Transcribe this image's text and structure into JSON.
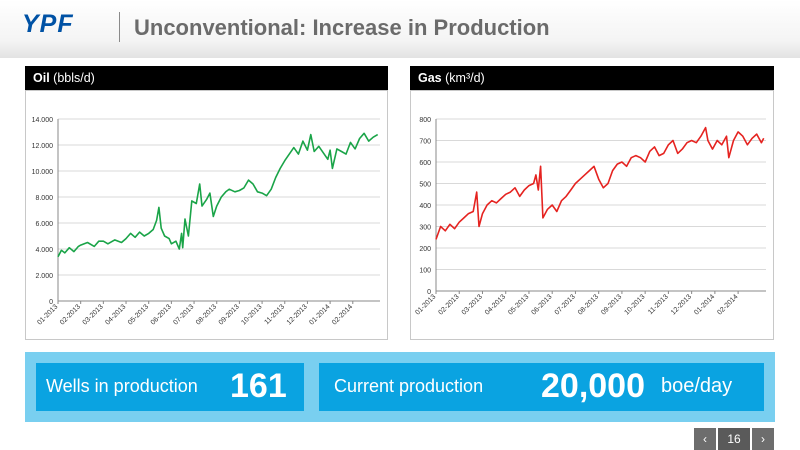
{
  "header": {
    "logo": "YPF",
    "title": "Unconventional: Increase in Production"
  },
  "colors": {
    "oil_line": "#1aa448",
    "gas_line": "#e52320",
    "kpi_box": "#0aa3e1",
    "kpi_strip": "#79cff0",
    "logo": "#0052a5"
  },
  "chart_data": [
    {
      "type": "line",
      "title": "Oil",
      "title_unit": "(bbls/d)",
      "ylim": [
        0,
        14000
      ],
      "yticks": [
        0,
        2000,
        4000,
        6000,
        8000,
        10000,
        12000,
        14000
      ],
      "ytick_labels": [
        "0",
        "2.000",
        "4.000",
        "6.000",
        "8.000",
        "10.000",
        "12.000",
        "14.000"
      ],
      "xtick_labels": [
        "01-2013",
        "02-2013",
        "03-2013",
        "04-2013",
        "05-2013",
        "06-2013",
        "07-2013",
        "08-2013",
        "09-2013",
        "10-2013",
        "11-2013",
        "12-2013",
        "01-2014",
        "02-2014"
      ],
      "x_range": [
        0,
        14.2
      ],
      "grid": true,
      "series": [
        {
          "color": "#1aa448",
          "points": [
            [
              0,
              3400
            ],
            [
              0.15,
              3900
            ],
            [
              0.3,
              3700
            ],
            [
              0.5,
              4100
            ],
            [
              0.7,
              3800
            ],
            [
              0.9,
              4200
            ],
            [
              1.0,
              4300
            ],
            [
              1.3,
              4500
            ],
            [
              1.6,
              4200
            ],
            [
              1.8,
              4600
            ],
            [
              2.0,
              4600
            ],
            [
              2.2,
              4400
            ],
            [
              2.5,
              4700
            ],
            [
              2.8,
              4500
            ],
            [
              3.0,
              4800
            ],
            [
              3.2,
              5200
            ],
            [
              3.4,
              4900
            ],
            [
              3.6,
              5300
            ],
            [
              3.8,
              5000
            ],
            [
              4.0,
              5200
            ],
            [
              4.2,
              5500
            ],
            [
              4.35,
              6200
            ],
            [
              4.45,
              7200
            ],
            [
              4.55,
              5600
            ],
            [
              4.7,
              5000
            ],
            [
              4.9,
              4800
            ],
            [
              5.0,
              4400
            ],
            [
              5.2,
              4600
            ],
            [
              5.35,
              4000
            ],
            [
              5.45,
              5200
            ],
            [
              5.5,
              4100
            ],
            [
              5.6,
              6300
            ],
            [
              5.75,
              5000
            ],
            [
              5.9,
              7700
            ],
            [
              6.1,
              7500
            ],
            [
              6.25,
              9000
            ],
            [
              6.35,
              7300
            ],
            [
              6.55,
              7800
            ],
            [
              6.7,
              8300
            ],
            [
              6.85,
              6500
            ],
            [
              7.0,
              7300
            ],
            [
              7.2,
              8000
            ],
            [
              7.4,
              8400
            ],
            [
              7.55,
              8600
            ],
            [
              7.8,
              8400
            ],
            [
              8.0,
              8500
            ],
            [
              8.2,
              8700
            ],
            [
              8.4,
              9300
            ],
            [
              8.6,
              9000
            ],
            [
              8.8,
              8400
            ],
            [
              9.0,
              8300
            ],
            [
              9.2,
              8100
            ],
            [
              9.4,
              8600
            ],
            [
              9.6,
              9500
            ],
            [
              9.8,
              10200
            ],
            [
              10.0,
              10800
            ],
            [
              10.2,
              11300
            ],
            [
              10.4,
              11800
            ],
            [
              10.6,
              11300
            ],
            [
              10.8,
              12300
            ],
            [
              11.0,
              11600
            ],
            [
              11.15,
              12800
            ],
            [
              11.3,
              11500
            ],
            [
              11.5,
              11900
            ],
            [
              11.7,
              11400
            ],
            [
              11.9,
              10900
            ],
            [
              12.0,
              11600
            ],
            [
              12.1,
              10200
            ],
            [
              12.3,
              11700
            ],
            [
              12.5,
              11500
            ],
            [
              12.7,
              11300
            ],
            [
              12.9,
              12200
            ],
            [
              13.1,
              11700
            ],
            [
              13.3,
              12500
            ],
            [
              13.5,
              12900
            ],
            [
              13.7,
              12300
            ],
            [
              13.9,
              12600
            ],
            [
              14.1,
              12800
            ]
          ]
        }
      ]
    },
    {
      "type": "line",
      "title": "Gas",
      "title_unit": "(km³/d)",
      "ylim": [
        0,
        800
      ],
      "yticks": [
        0,
        100,
        200,
        300,
        400,
        500,
        600,
        700,
        800
      ],
      "ytick_labels": [
        "0",
        "100",
        "200",
        "300",
        "400",
        "500",
        "600",
        "700",
        "800"
      ],
      "xtick_labels": [
        "01-2013",
        "02-2013",
        "03-2013",
        "04-2013",
        "05-2013",
        "06-2013",
        "07-2013",
        "08-2013",
        "09-2013",
        "10-2013",
        "11-2013",
        "12-2013",
        "01-2014",
        "02-2014"
      ],
      "x_range": [
        0,
        14.2
      ],
      "grid": true,
      "series": [
        {
          "color": "#e52320",
          "points": [
            [
              0,
              240
            ],
            [
              0.2,
              300
            ],
            [
              0.4,
              280
            ],
            [
              0.6,
              310
            ],
            [
              0.8,
              290
            ],
            [
              1.0,
              320
            ],
            [
              1.2,
              340
            ],
            [
              1.4,
              360
            ],
            [
              1.6,
              370
            ],
            [
              1.75,
              460
            ],
            [
              1.85,
              300
            ],
            [
              2.0,
              360
            ],
            [
              2.2,
              400
            ],
            [
              2.4,
              420
            ],
            [
              2.6,
              410
            ],
            [
              2.8,
              430
            ],
            [
              3.0,
              450
            ],
            [
              3.2,
              460
            ],
            [
              3.4,
              480
            ],
            [
              3.6,
              440
            ],
            [
              3.8,
              470
            ],
            [
              4.0,
              490
            ],
            [
              4.2,
              500
            ],
            [
              4.3,
              540
            ],
            [
              4.4,
              470
            ],
            [
              4.5,
              580
            ],
            [
              4.6,
              340
            ],
            [
              4.8,
              380
            ],
            [
              5.0,
              400
            ],
            [
              5.2,
              370
            ],
            [
              5.4,
              420
            ],
            [
              5.6,
              440
            ],
            [
              5.8,
              470
            ],
            [
              6.0,
              500
            ],
            [
              6.2,
              520
            ],
            [
              6.4,
              540
            ],
            [
              6.6,
              560
            ],
            [
              6.8,
              580
            ],
            [
              7.0,
              520
            ],
            [
              7.2,
              480
            ],
            [
              7.4,
              500
            ],
            [
              7.6,
              560
            ],
            [
              7.8,
              590
            ],
            [
              8.0,
              600
            ],
            [
              8.2,
              580
            ],
            [
              8.4,
              620
            ],
            [
              8.6,
              630
            ],
            [
              8.8,
              620
            ],
            [
              9.0,
              600
            ],
            [
              9.2,
              650
            ],
            [
              9.4,
              670
            ],
            [
              9.6,
              630
            ],
            [
              9.8,
              640
            ],
            [
              10.0,
              680
            ],
            [
              10.2,
              700
            ],
            [
              10.4,
              640
            ],
            [
              10.6,
              660
            ],
            [
              10.8,
              690
            ],
            [
              11.0,
              700
            ],
            [
              11.2,
              690
            ],
            [
              11.4,
              720
            ],
            [
              11.6,
              760
            ],
            [
              11.7,
              700
            ],
            [
              11.9,
              660
            ],
            [
              12.1,
              700
            ],
            [
              12.3,
              680
            ],
            [
              12.5,
              720
            ],
            [
              12.6,
              620
            ],
            [
              12.8,
              700
            ],
            [
              13.0,
              740
            ],
            [
              13.2,
              720
            ],
            [
              13.4,
              680
            ],
            [
              13.6,
              710
            ],
            [
              13.8,
              730
            ],
            [
              14.0,
              690
            ],
            [
              14.1,
              710
            ]
          ]
        }
      ]
    }
  ],
  "kpis": {
    "wells_label": "Wells in production",
    "wells_value": "161",
    "production_label": "Current production",
    "production_value": "20,000",
    "production_unit": "boe/day"
  },
  "pager": {
    "prev_icon": "chevron-left-icon",
    "page_number": "16",
    "next_icon": "chevron-right-icon"
  }
}
